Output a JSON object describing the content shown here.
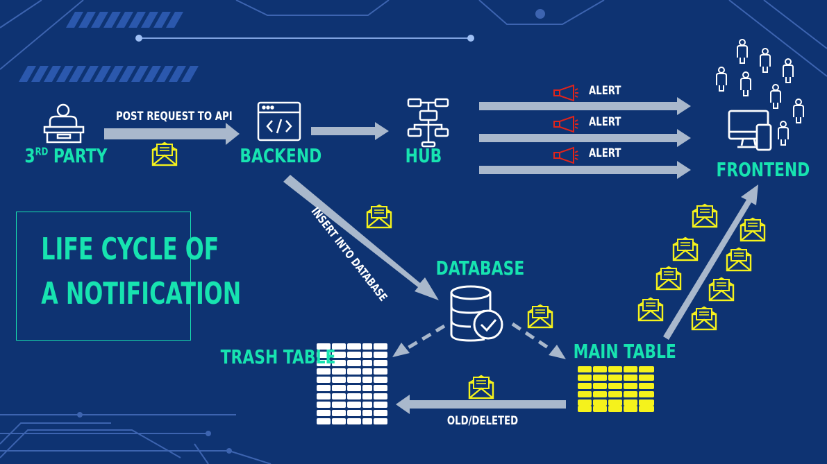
{
  "diagram": {
    "title": [
      "LIFE CYCLE OF",
      "A NOTIFICATION"
    ],
    "nodes": {
      "third_party": {
        "main": "3",
        "sup": "RD",
        "rest": " PARTY"
      },
      "backend": "BACKEND",
      "hub": "HUB",
      "frontend": "FRONTEND",
      "database": "DATABASE",
      "trash_table": "TRASH TABLE",
      "main_table": "MAIN TABLE"
    },
    "edges": {
      "third_party_to_backend": "POST REQUEST TO API",
      "backend_to_database": "INSERT INTO DATABASE",
      "main_to_trash": "OLD/DELETED",
      "hub_to_frontend": [
        "ALERT",
        "ALERT",
        "ALERT"
      ]
    },
    "colors": {
      "background": "#0e3372",
      "accent": "#17e3b0",
      "arrow": "#a9b8cc",
      "envelope": "#f5f21c",
      "megaphone": "#e0241b"
    }
  }
}
